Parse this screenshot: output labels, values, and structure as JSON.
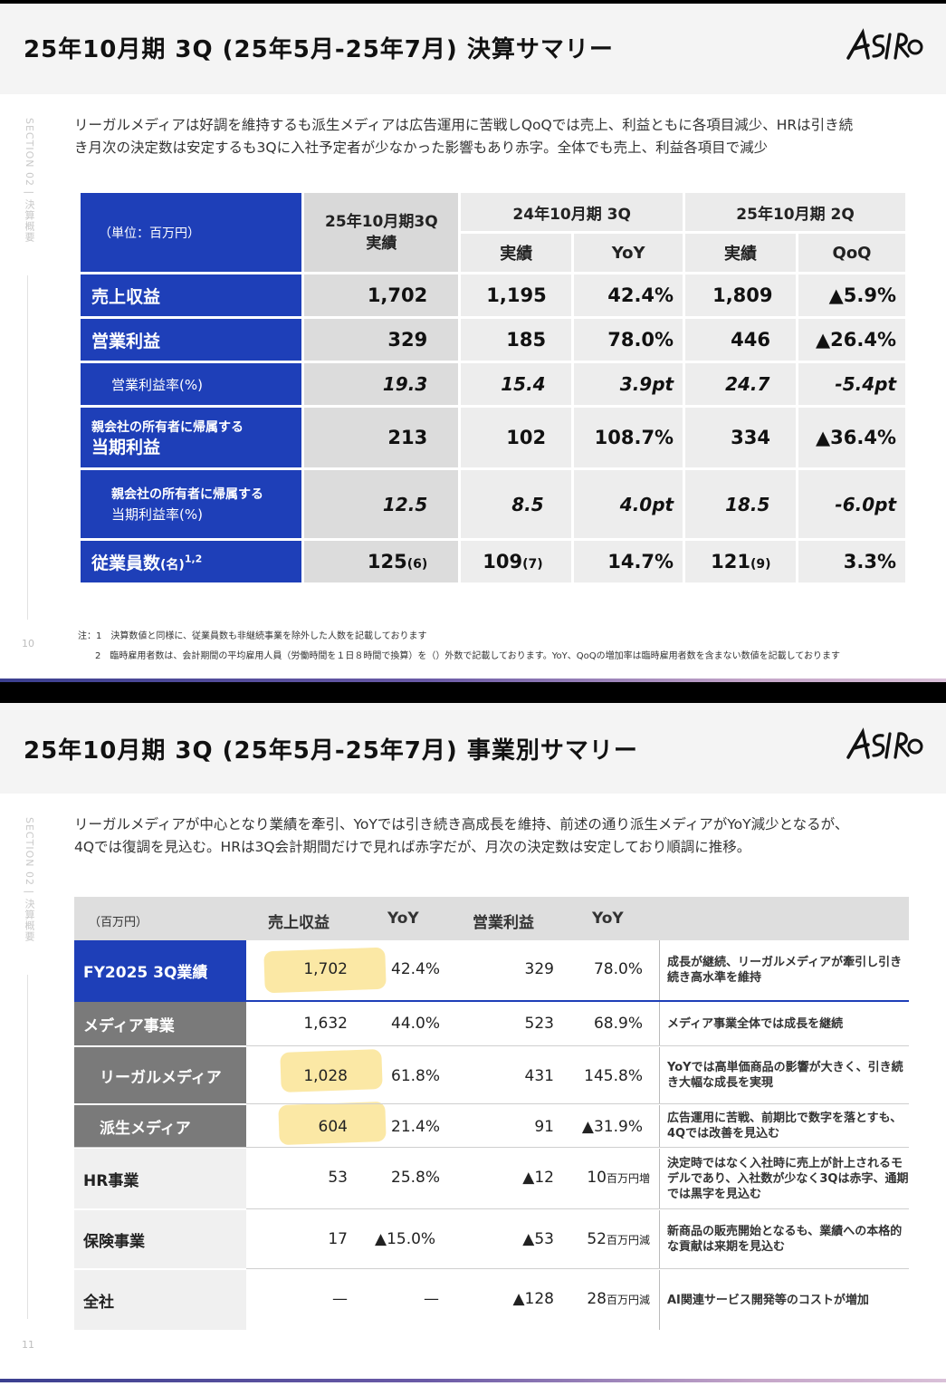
{
  "slide1": {
    "title": "25年10月期 3Q (25年5月-25年7月) 決算サマリー",
    "logo_text": "ASIRO",
    "section_label": "SECTION 02 | 決算概要",
    "page_number": "10",
    "lead_line1": "リーガルメディアは好調を維持するも派生メディアは広告運用に苦戦しQoQでは売上、利益ともに各項目減少、HRは引き続",
    "lead_line2": "き月次の決定数は安定するも3Qに入社予定者が少なかった影響もあり赤字。全体でも売上、利益各項目で減少",
    "table": {
      "unit_label": "（単位：百万円）",
      "current_header": "25年10月期3Q",
      "current_sub": "実績",
      "prev_year_header": "24年10月期 3Q",
      "prev_q_header": "25年10月期 2Q",
      "col_actual": "実績",
      "col_yoy": "YoY",
      "col_qoq": "QoQ",
      "rows": [
        {
          "label": "売上収益",
          "current": "1,702",
          "prev_year": "1,195",
          "yoy": "42.4%",
          "prev_q": "1,809",
          "qoq": "▲5.9%"
        },
        {
          "label": "営業利益",
          "current": "329",
          "prev_year": "185",
          "yoy": "78.0%",
          "prev_q": "446",
          "qoq": "▲26.4%"
        },
        {
          "label": "営業利益率(%)",
          "current": "19.3",
          "prev_year": "15.4",
          "yoy": "3.9pt",
          "prev_q": "24.7",
          "qoq": "-5.4pt"
        },
        {
          "label_small": "親会社の所有者に帰属する",
          "label": "当期利益",
          "current": "213",
          "prev_year": "102",
          "yoy": "108.7%",
          "prev_q": "334",
          "qoq": "▲36.4%"
        },
        {
          "label_small": "親会社の所有者に帰属する",
          "label": "当期利益率(%)",
          "current": "12.5",
          "prev_year": "8.5",
          "yoy": "4.0pt",
          "prev_q": "18.5",
          "qoq": "-6.0pt"
        },
        {
          "label": "従業員数",
          "label_unit": "(名)",
          "label_sup": "1,2",
          "current": "125",
          "current_sub": "(6)",
          "prev_year": "109",
          "prev_year_sub": "(7)",
          "yoy": "14.7%",
          "prev_q": "121",
          "prev_q_sub": "(9)",
          "qoq": "3.3%"
        }
      ]
    },
    "note1": "注：1　決算数値と同様に、従業員数も非継続事業を除外した人数を記載しております",
    "note2": "2　臨時雇用者数は、会計期間の平均雇用人員（労働時間を１日８時間で換算）を（）外数で記載しております。YoY、QoQの増加率は臨時雇用者数を含まない数値を記載しております"
  },
  "slide2": {
    "title": "25年10月期 3Q (25年5月-25年7月) 事業別サマリー",
    "logo_text": "ASIRO",
    "section_label": "SECTION 02 | 決算概要",
    "page_number": "11",
    "lead_line1": "リーガルメディアが中心となり業績を牽引、YoYでは引き続き高成長を維持、前述の通り派生メディアがYoY減少となるが、",
    "lead_line2": "4Qでは復調を見込む。HRは3Q会計期間だけで見れば赤字だが、月次の決定数は安定しており順調に推移。",
    "table": {
      "unit_label": "（百万円）",
      "col_revenue": "売上収益",
      "col_yoy1": "YoY",
      "col_op": "営業利益",
      "col_yoy2": "YoY",
      "rows": [
        {
          "label": "FY2025 3Q業績",
          "revenue": "1,702",
          "yoy1": "42.4%",
          "op": "329",
          "yoy2": "78.0%",
          "comment": "成長が継続、リーガルメディアが牽引し引き続き高水準を維持"
        },
        {
          "label": "メディア事業",
          "revenue": "1,632",
          "yoy1": "44.0%",
          "op": "523",
          "yoy2": "68.9%",
          "comment": "メディア事業全体では成長を継続"
        },
        {
          "label": "リーガルメディア",
          "revenue": "1,028",
          "yoy1": "61.8%",
          "op": "431",
          "yoy2": "145.8%",
          "comment": "YoYでは高単価商品の影響が大きく、引き続き大幅な成長を実現"
        },
        {
          "label": "派生メディア",
          "revenue": "604",
          "yoy1": "21.4%",
          "op": "91",
          "yoy2": "▲31.9%",
          "comment": "広告運用に苦戦、前期比で数字を落とすも、4Qでは改善を見込む"
        },
        {
          "label": "HR事業",
          "revenue": "53",
          "yoy1": "25.8%",
          "op": "▲12",
          "yoy2": "10",
          "yoy2_unit": "百万円増",
          "comment": "決定時ではなく入社時に売上が計上されるモデルであり、入社数が少なく3Qは赤字、通期では黒字を見込む"
        },
        {
          "label": "保険事業",
          "revenue": "17",
          "yoy1": "▲15.0%",
          "op": "▲53",
          "yoy2": "52",
          "yoy2_unit": "百万円減",
          "comment": "新商品の販売開始となるも、業績への本格的な貢献は来期を見込む"
        },
        {
          "label": "全社",
          "revenue": "—",
          "yoy1": "—",
          "op": "▲128",
          "yoy2": "28",
          "yoy2_unit": "百万円減",
          "comment": "AI関連サービス開発等のコストが増加"
        }
      ]
    }
  },
  "colors": {
    "brand_blue": "#1e3fb8",
    "gray_label": "#7a7a7a",
    "highlight": "#fbe69b"
  }
}
